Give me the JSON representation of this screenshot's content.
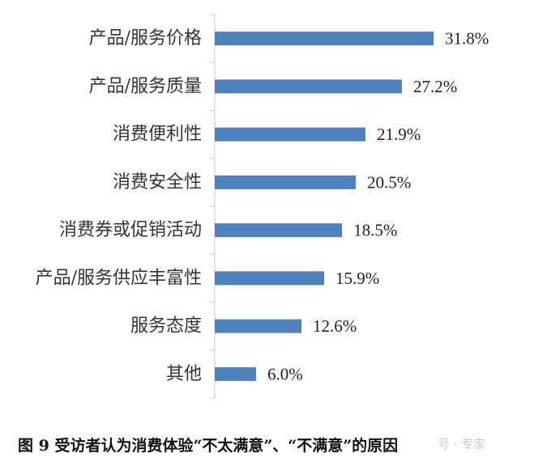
{
  "chart_data": {
    "type": "bar",
    "orientation": "horizontal",
    "categories": [
      "产品/服务价格",
      "产品/服务质量",
      "消费便利性",
      "消费安全性",
      "消费券或促销活动",
      "产品/服务供应丰富性",
      "服务态度",
      "其他"
    ],
    "values": [
      31.8,
      27.2,
      21.9,
      20.5,
      18.5,
      15.9,
      12.6,
      6.0
    ],
    "value_labels": [
      "31.8%",
      "27.2%",
      "21.9%",
      "20.5%",
      "18.5%",
      "15.9%",
      "12.6%",
      "6.0%"
    ],
    "bar_color": "#4f81bd",
    "xlim": [
      0,
      35
    ],
    "grid": false,
    "legend": "none"
  },
  "caption": "图 9  受访者认为消费体验“不太满意”、“不满意”的原因",
  "watermark": "号 · 专家"
}
